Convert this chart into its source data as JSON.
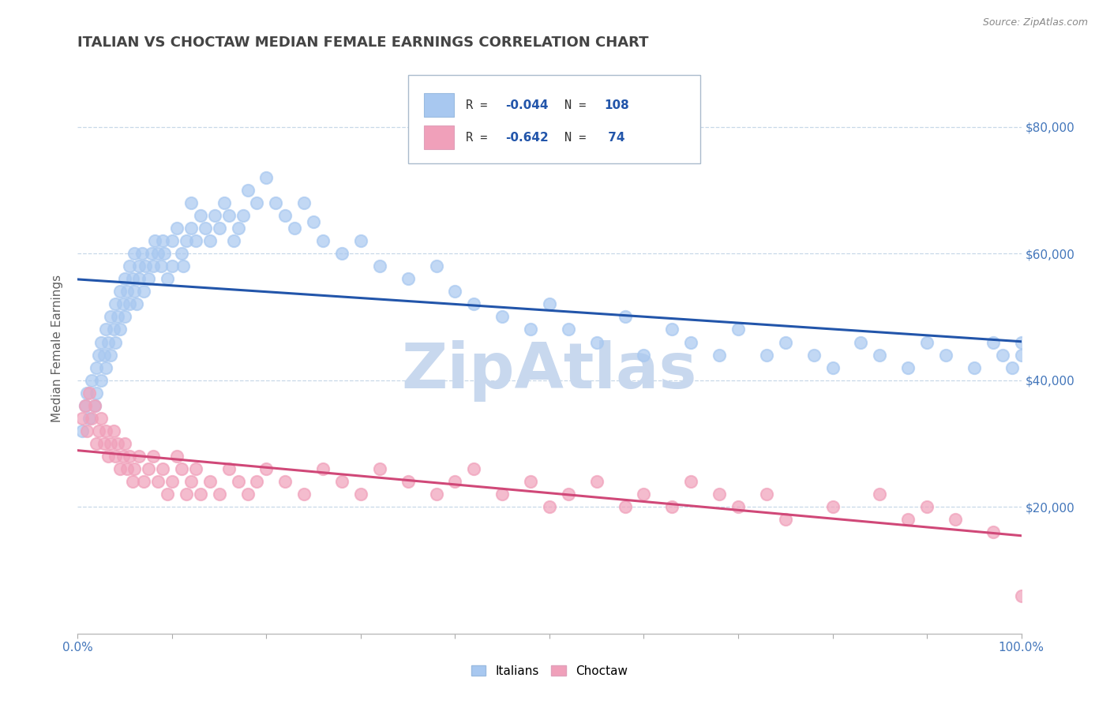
{
  "title": "ITALIAN VS CHOCTAW MEDIAN FEMALE EARNINGS CORRELATION CHART",
  "source_text": "Source: ZipAtlas.com",
  "ylabel": "Median Female Earnings",
  "ytick_labels": [
    "$20,000",
    "$40,000",
    "$60,000",
    "$80,000"
  ],
  "ytick_values": [
    20000,
    40000,
    60000,
    80000
  ],
  "legend_label1": "Italians",
  "legend_label2": "Choctaw",
  "r1": -0.044,
  "n1": 108,
  "r2": -0.642,
  "n2": 74,
  "color_italian": "#A8C8F0",
  "color_choctaw": "#F0A0BA",
  "line_color_italian": "#2255AA",
  "line_color_choctaw": "#D04878",
  "watermark_text": "ZipAtlas",
  "watermark_color": "#C8D8EE",
  "background_color": "#FFFFFF",
  "grid_color": "#C8D8E8",
  "title_color": "#444444",
  "axis_label_color": "#4477BB",
  "legend_r_color": "#2255AA",
  "italian_x": [
    0.005,
    0.008,
    0.01,
    0.012,
    0.015,
    0.018,
    0.02,
    0.02,
    0.022,
    0.025,
    0.025,
    0.028,
    0.03,
    0.03,
    0.032,
    0.035,
    0.035,
    0.038,
    0.04,
    0.04,
    0.042,
    0.045,
    0.045,
    0.048,
    0.05,
    0.05,
    0.052,
    0.055,
    0.055,
    0.058,
    0.06,
    0.06,
    0.062,
    0.065,
    0.065,
    0.068,
    0.07,
    0.072,
    0.075,
    0.078,
    0.08,
    0.082,
    0.085,
    0.088,
    0.09,
    0.092,
    0.095,
    0.1,
    0.1,
    0.105,
    0.11,
    0.112,
    0.115,
    0.12,
    0.12,
    0.125,
    0.13,
    0.135,
    0.14,
    0.145,
    0.15,
    0.155,
    0.16,
    0.165,
    0.17,
    0.175,
    0.18,
    0.19,
    0.2,
    0.21,
    0.22,
    0.23,
    0.24,
    0.25,
    0.26,
    0.28,
    0.3,
    0.32,
    0.35,
    0.38,
    0.4,
    0.42,
    0.45,
    0.48,
    0.5,
    0.52,
    0.55,
    0.58,
    0.6,
    0.63,
    0.65,
    0.68,
    0.7,
    0.73,
    0.75,
    0.78,
    0.8,
    0.83,
    0.85,
    0.88,
    0.9,
    0.92,
    0.95,
    0.97,
    0.98,
    0.99,
    1.0,
    1.0
  ],
  "italian_y": [
    32000,
    36000,
    38000,
    34000,
    40000,
    36000,
    42000,
    38000,
    44000,
    40000,
    46000,
    44000,
    48000,
    42000,
    46000,
    50000,
    44000,
    48000,
    52000,
    46000,
    50000,
    54000,
    48000,
    52000,
    56000,
    50000,
    54000,
    58000,
    52000,
    56000,
    60000,
    54000,
    52000,
    56000,
    58000,
    60000,
    54000,
    58000,
    56000,
    60000,
    58000,
    62000,
    60000,
    58000,
    62000,
    60000,
    56000,
    62000,
    58000,
    64000,
    60000,
    58000,
    62000,
    64000,
    68000,
    62000,
    66000,
    64000,
    62000,
    66000,
    64000,
    68000,
    66000,
    62000,
    64000,
    66000,
    70000,
    68000,
    72000,
    68000,
    66000,
    64000,
    68000,
    65000,
    62000,
    60000,
    62000,
    58000,
    56000,
    58000,
    54000,
    52000,
    50000,
    48000,
    52000,
    48000,
    46000,
    50000,
    44000,
    48000,
    46000,
    44000,
    48000,
    44000,
    46000,
    44000,
    42000,
    46000,
    44000,
    42000,
    46000,
    44000,
    42000,
    46000,
    44000,
    42000,
    44000,
    46000
  ],
  "choctaw_x": [
    0.005,
    0.008,
    0.01,
    0.012,
    0.015,
    0.018,
    0.02,
    0.022,
    0.025,
    0.028,
    0.03,
    0.032,
    0.035,
    0.038,
    0.04,
    0.042,
    0.045,
    0.048,
    0.05,
    0.052,
    0.055,
    0.058,
    0.06,
    0.065,
    0.07,
    0.075,
    0.08,
    0.085,
    0.09,
    0.095,
    0.1,
    0.105,
    0.11,
    0.115,
    0.12,
    0.125,
    0.13,
    0.14,
    0.15,
    0.16,
    0.17,
    0.18,
    0.19,
    0.2,
    0.22,
    0.24,
    0.26,
    0.28,
    0.3,
    0.32,
    0.35,
    0.38,
    0.4,
    0.42,
    0.45,
    0.48,
    0.5,
    0.52,
    0.55,
    0.58,
    0.6,
    0.63,
    0.65,
    0.68,
    0.7,
    0.73,
    0.75,
    0.8,
    0.85,
    0.88,
    0.9,
    0.93,
    0.97,
    1.0
  ],
  "choctaw_y": [
    34000,
    36000,
    32000,
    38000,
    34000,
    36000,
    30000,
    32000,
    34000,
    30000,
    32000,
    28000,
    30000,
    32000,
    28000,
    30000,
    26000,
    28000,
    30000,
    26000,
    28000,
    24000,
    26000,
    28000,
    24000,
    26000,
    28000,
    24000,
    26000,
    22000,
    24000,
    28000,
    26000,
    22000,
    24000,
    26000,
    22000,
    24000,
    22000,
    26000,
    24000,
    22000,
    24000,
    26000,
    24000,
    22000,
    26000,
    24000,
    22000,
    26000,
    24000,
    22000,
    24000,
    26000,
    22000,
    24000,
    20000,
    22000,
    24000,
    20000,
    22000,
    20000,
    24000,
    22000,
    20000,
    22000,
    18000,
    20000,
    22000,
    18000,
    20000,
    18000,
    16000,
    6000
  ]
}
